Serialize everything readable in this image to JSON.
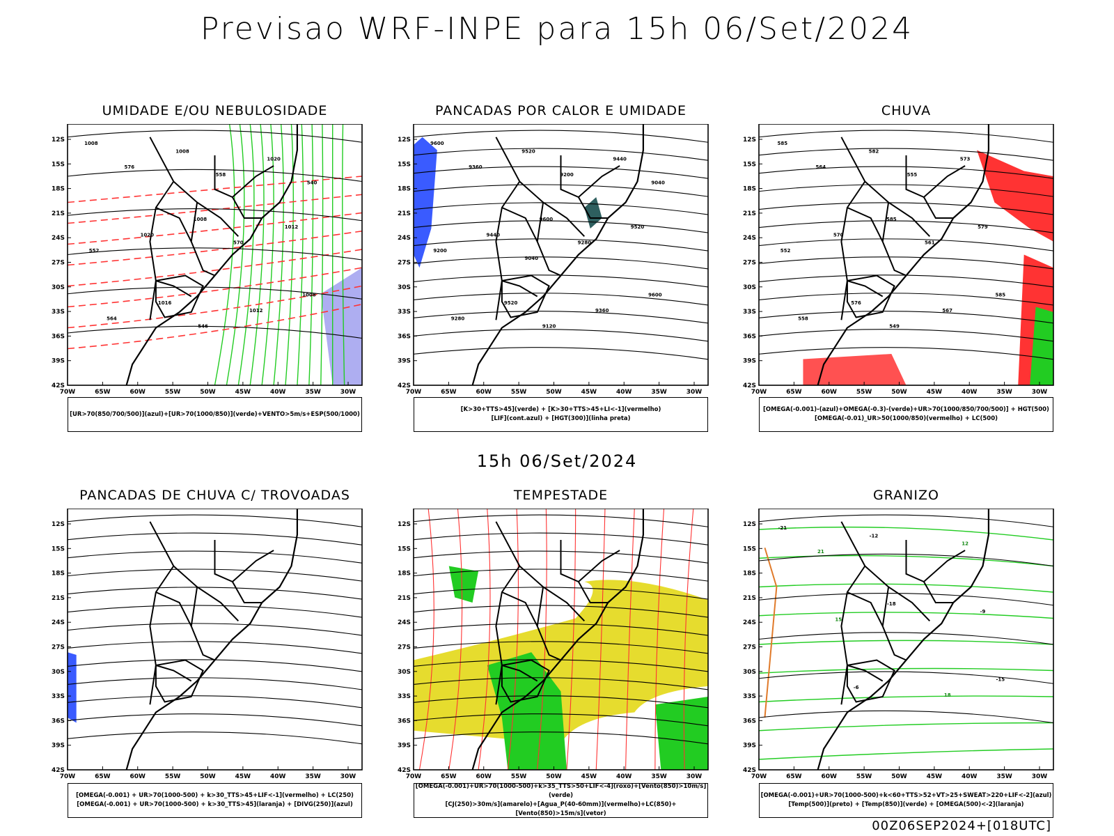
{
  "title": "Previsao WRF-INPE  para 15h 06/Set/2024",
  "mid_title": "15h 06/Set/2024",
  "footer": "00Z06SEP2024+[018UTC]",
  "lat_ticks": [
    "12S",
    "15S",
    "18S",
    "21S",
    "24S",
    "27S",
    "30S",
    "33S",
    "36S",
    "39S",
    "42S"
  ],
  "lon_ticks": [
    "70W",
    "65W",
    "60W",
    "55W",
    "50W",
    "45W",
    "40W",
    "35W",
    "30W"
  ],
  "colors": {
    "blue": "#3a5bff",
    "green": "#22cc22",
    "red": "#ff3333",
    "yellow": "#e6dc2e",
    "teal": "#2e5f5f",
    "orange": "#e07a2a",
    "lavender": "#9a9aee"
  },
  "panels": [
    {
      "id": "umidade",
      "title": "UMIDADE E/OU NEBULOSIDADE",
      "legend": [
        "[UR>70(850/700/500)](azul)+[UR>70(1000/850)](verde)+VENTO>5m/s+ESP(500/1000)"
      ],
      "labels": [
        "1008",
        "1008",
        "1008",
        "1008",
        "1012",
        "1016",
        "1020",
        "1020",
        "1012",
        "576",
        "570",
        "564",
        "558",
        "552",
        "546",
        "540"
      ]
    },
    {
      "id": "pancadas_calor",
      "title": "PANCADAS POR CALOR E UMIDADE",
      "legend": [
        "[K>30+TTS>45](verde) + [K>30+TTS>45+LI<-1](vermelho)",
        "[LIF](cont.azul) + [HGT(300)](linha preta)"
      ],
      "labels": [
        "9600",
        "9600",
        "9600",
        "9520",
        "9520",
        "9520",
        "9440",
        "9440",
        "9360",
        "9360",
        "9280",
        "9280",
        "9200",
        "9200",
        "9120",
        "9040",
        "9040"
      ]
    },
    {
      "id": "chuva",
      "title": "CHUVA",
      "legend": [
        "[OMEGA(-0.001)-(azul)+OMEGA(-0.3)-(verde)+UR>70(1000/850/700/500)] + HGT(500)",
        "[OMEGA(-0.01)_UR>50(1000/850)(vermelho) + LC(500)"
      ],
      "labels": [
        "585",
        "585",
        "585",
        "582",
        "579",
        "576",
        "573",
        "570",
        "567",
        "564",
        "561",
        "558",
        "555",
        "552",
        "549"
      ]
    },
    {
      "id": "trovoadas",
      "title": "PANCADAS DE CHUVA C/ TROVOADAS",
      "legend": [
        "[OMEGA(-0.001) + UR>70(1000-500) + k>30_TTS>45+LIF<-1](vermelho) + LC(250)",
        "[OMEGA(-0.001) + UR>70(1000-500) + k>30_TTS>45](laranja) + [DIVG(250)](azul)"
      ],
      "labels": []
    },
    {
      "id": "tempestade",
      "title": "TEMPESTADE",
      "legend": [
        "[OMEGA(-0.001)+UR>70(1000-500)+k>35_TTS>50+LIF<-4](roxo)+[Vento(850)>10m/s](verde)",
        "[CJ(250)>30m/s](amarelo)+[Agua_P(40-60mm)](vermelho)+LC(850)+[Vento(850)>15m/s](vetor)"
      ],
      "labels": []
    },
    {
      "id": "granizo",
      "title": "GRANIZO",
      "legend": [
        "[OMEGA(-0.001)+UR>70(1000-500)+k<60+TTS>52+VT>25+SWEAT>220+LIF<-2](azul)",
        "[Temp(500)](preto) + [Temp(850)](verde) + [OMEGA(500)<-2](laranja)"
      ],
      "labels": [
        "-21",
        "-18",
        "-15",
        "-12",
        "-9",
        "-6",
        "12",
        "15",
        "18",
        "21"
      ]
    }
  ]
}
